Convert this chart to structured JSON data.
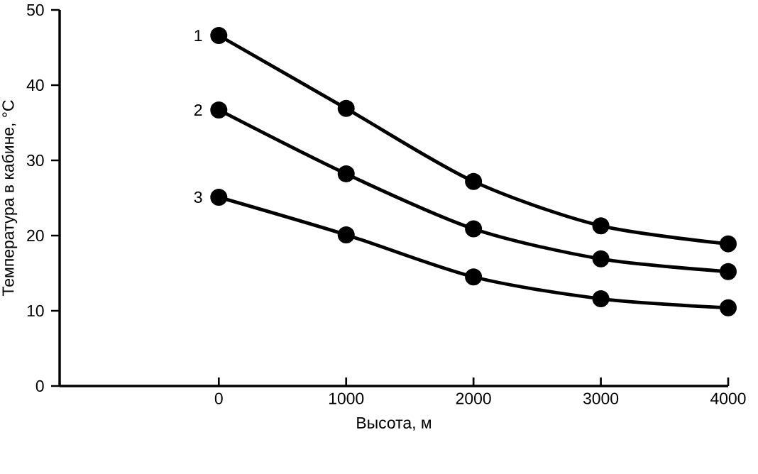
{
  "chart_data": {
    "type": "line",
    "xlabel": "Высота, м",
    "ylabel": "Температура в кабине, °C",
    "x": [
      0,
      1000,
      2000,
      3000,
      4000
    ],
    "series": [
      {
        "name": "1",
        "color": "#000000",
        "values": [
          46.6,
          36.9,
          27.2,
          21.3,
          18.9
        ]
      },
      {
        "name": "2",
        "color": "#000000",
        "values": [
          36.7,
          28.2,
          20.9,
          16.9,
          15.2
        ]
      },
      {
        "name": "3",
        "color": "#000000",
        "values": [
          25.1,
          20.1,
          14.5,
          11.6,
          10.4
        ]
      }
    ],
    "xlim": [
      -1250,
      4000
    ],
    "ylim": [
      0,
      50
    ],
    "xticks": [
      0,
      1000,
      2000,
      3000,
      4000
    ],
    "yticks": [
      0,
      10,
      20,
      30,
      40,
      50
    ],
    "marker": "circle",
    "line_style": "solid",
    "grid": false
  }
}
